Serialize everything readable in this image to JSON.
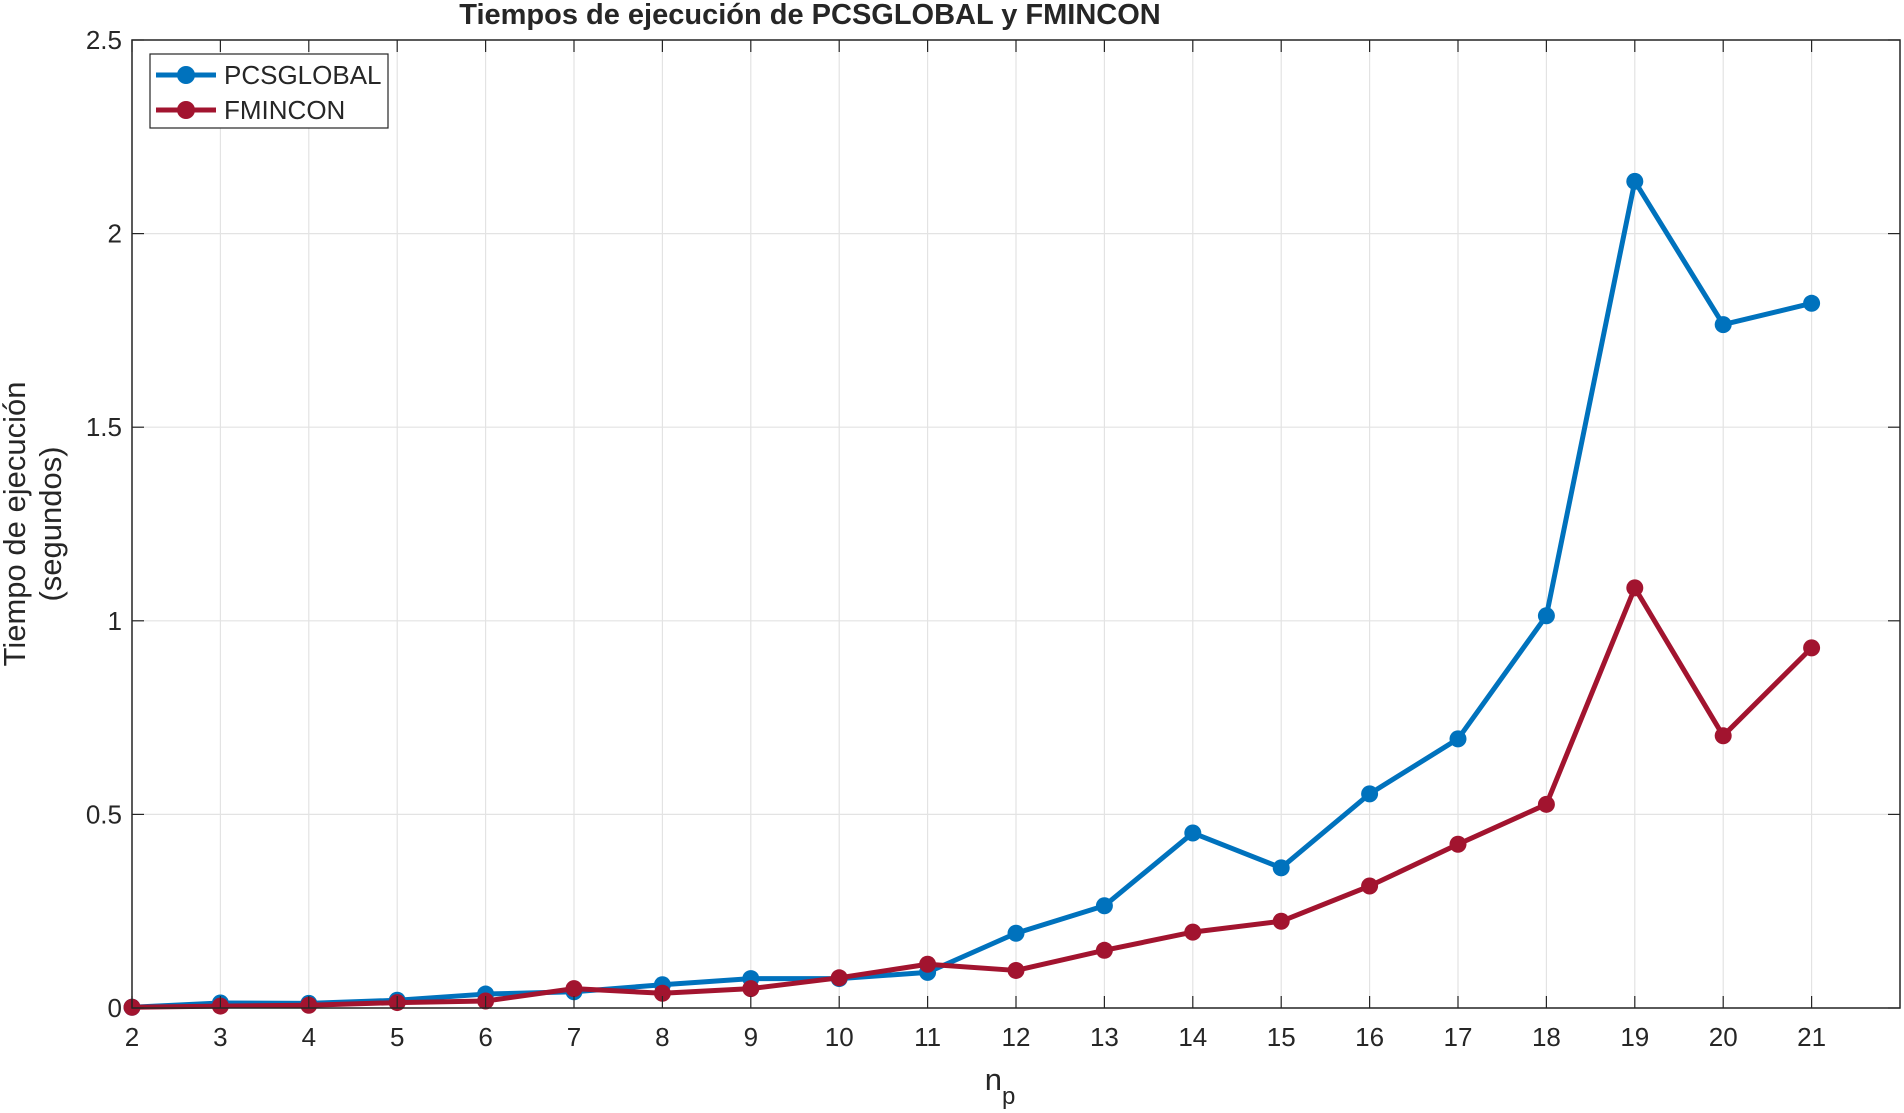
{
  "chart_data": {
    "type": "line",
    "title": "Tiempos de ejecución de PCSGLOBAL y FMINCON",
    "xlabel": {
      "main": "n",
      "sub": "p"
    },
    "ylabel": [
      "Tiempo de ejecución",
      "(segundos)"
    ],
    "x": [
      2,
      3,
      4,
      5,
      6,
      7,
      8,
      9,
      10,
      11,
      12,
      13,
      14,
      15,
      16,
      17,
      18,
      19,
      20,
      21
    ],
    "xlim": [
      2,
      22
    ],
    "ylim": [
      0,
      2.5
    ],
    "xticks": [
      "2",
      "3",
      "4",
      "5",
      "6",
      "7",
      "8",
      "9",
      "10",
      "11",
      "12",
      "13",
      "14",
      "15",
      "16",
      "17",
      "18",
      "19",
      "20",
      "21"
    ],
    "yticks": [
      {
        "value": 0,
        "label": "0"
      },
      {
        "value": 0.5,
        "label": "0.5"
      },
      {
        "value": 1,
        "label": "1"
      },
      {
        "value": 1.5,
        "label": "1.5"
      },
      {
        "value": 2,
        "label": "2"
      },
      {
        "value": 2.5,
        "label": "2.5"
      }
    ],
    "grid": true,
    "legend_position": "top-left",
    "series": [
      {
        "name": "PCSGLOBAL",
        "color": "#0072bd",
        "values": [
          0.002,
          0.013,
          0.012,
          0.02,
          0.036,
          0.042,
          0.06,
          0.076,
          0.076,
          0.092,
          0.193,
          0.264,
          0.452,
          0.362,
          0.553,
          0.695,
          1.013,
          2.135,
          1.765,
          1.82
        ]
      },
      {
        "name": "FMINCON",
        "color": "#a2142f",
        "values": [
          0.002,
          0.005,
          0.007,
          0.014,
          0.018,
          0.05,
          0.038,
          0.05,
          0.078,
          0.113,
          0.097,
          0.149,
          0.196,
          0.224,
          0.315,
          0.423,
          0.526,
          1.085,
          0.703,
          0.93
        ]
      }
    ]
  }
}
